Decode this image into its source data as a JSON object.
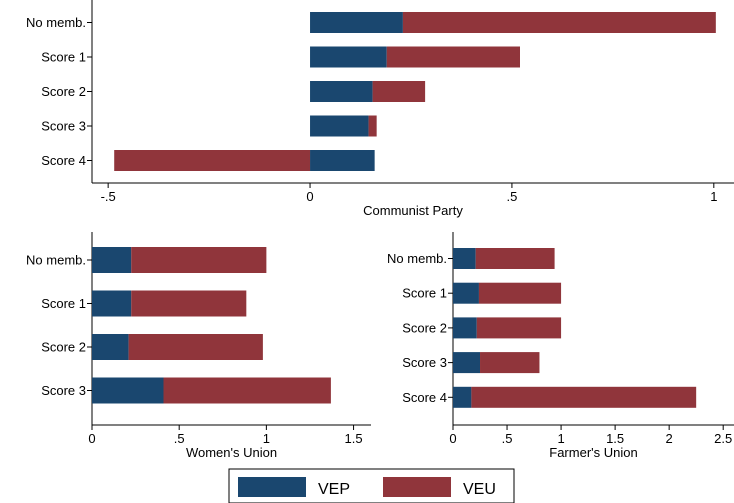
{
  "colors": {
    "vep": "#1a476f",
    "veu": "#90353b"
  },
  "legend": {
    "items": [
      {
        "label": "VEP",
        "color": "#1a476f"
      },
      {
        "label": "VEU",
        "color": "#90353b"
      }
    ]
  },
  "chart_data": [
    {
      "id": "communist",
      "type": "bar",
      "orientation": "horizontal",
      "stacked": true,
      "title": "",
      "xlabel": "Communist Party",
      "xlim": [
        -0.54,
        1.05
      ],
      "ticks": [
        "-.5",
        "0",
        ".5",
        "1"
      ],
      "tick_values": [
        -0.5,
        0,
        0.5,
        1
      ],
      "categories": [
        "No memb.",
        "Score 1",
        "Score 2",
        "Score 3",
        "Score 4"
      ],
      "series": [
        {
          "name": "VEP",
          "values": [
            0.23,
            0.19,
            0.155,
            0.145,
            0.16
          ]
        },
        {
          "name": "VEU",
          "values": [
            0.775,
            0.33,
            0.13,
            0.02,
            -0.485
          ]
        }
      ]
    },
    {
      "id": "women",
      "type": "bar",
      "orientation": "horizontal",
      "stacked": true,
      "title": "",
      "xlabel": "Women's Union",
      "xlim": [
        0,
        1.6
      ],
      "ticks": [
        "0",
        ".5",
        "1",
        "1.5"
      ],
      "tick_values": [
        0,
        0.5,
        1,
        1.5
      ],
      "categories": [
        "No memb.",
        "Score 1",
        "Score 2",
        "Score 3"
      ],
      "series": [
        {
          "name": "VEP",
          "values": [
            0.225,
            0.225,
            0.21,
            0.41
          ]
        },
        {
          "name": "VEU",
          "values": [
            0.775,
            0.66,
            0.77,
            0.96
          ]
        }
      ]
    },
    {
      "id": "farmer",
      "type": "bar",
      "orientation": "horizontal",
      "stacked": true,
      "title": "",
      "xlabel": "Farmer's Union",
      "xlim": [
        0,
        2.6
      ],
      "ticks": [
        "0",
        ".5",
        "1",
        "1.5",
        "2",
        "2.5"
      ],
      "tick_values": [
        0,
        0.5,
        1,
        1.5,
        2,
        2.5
      ],
      "categories": [
        "No memb.",
        "Score 1",
        "Score 2",
        "Score 3",
        "Score 4"
      ],
      "series": [
        {
          "name": "VEP",
          "values": [
            0.21,
            0.24,
            0.22,
            0.25,
            0.17
          ]
        },
        {
          "name": "VEU",
          "values": [
            0.73,
            0.76,
            0.78,
            0.55,
            2.08
          ]
        }
      ]
    }
  ]
}
